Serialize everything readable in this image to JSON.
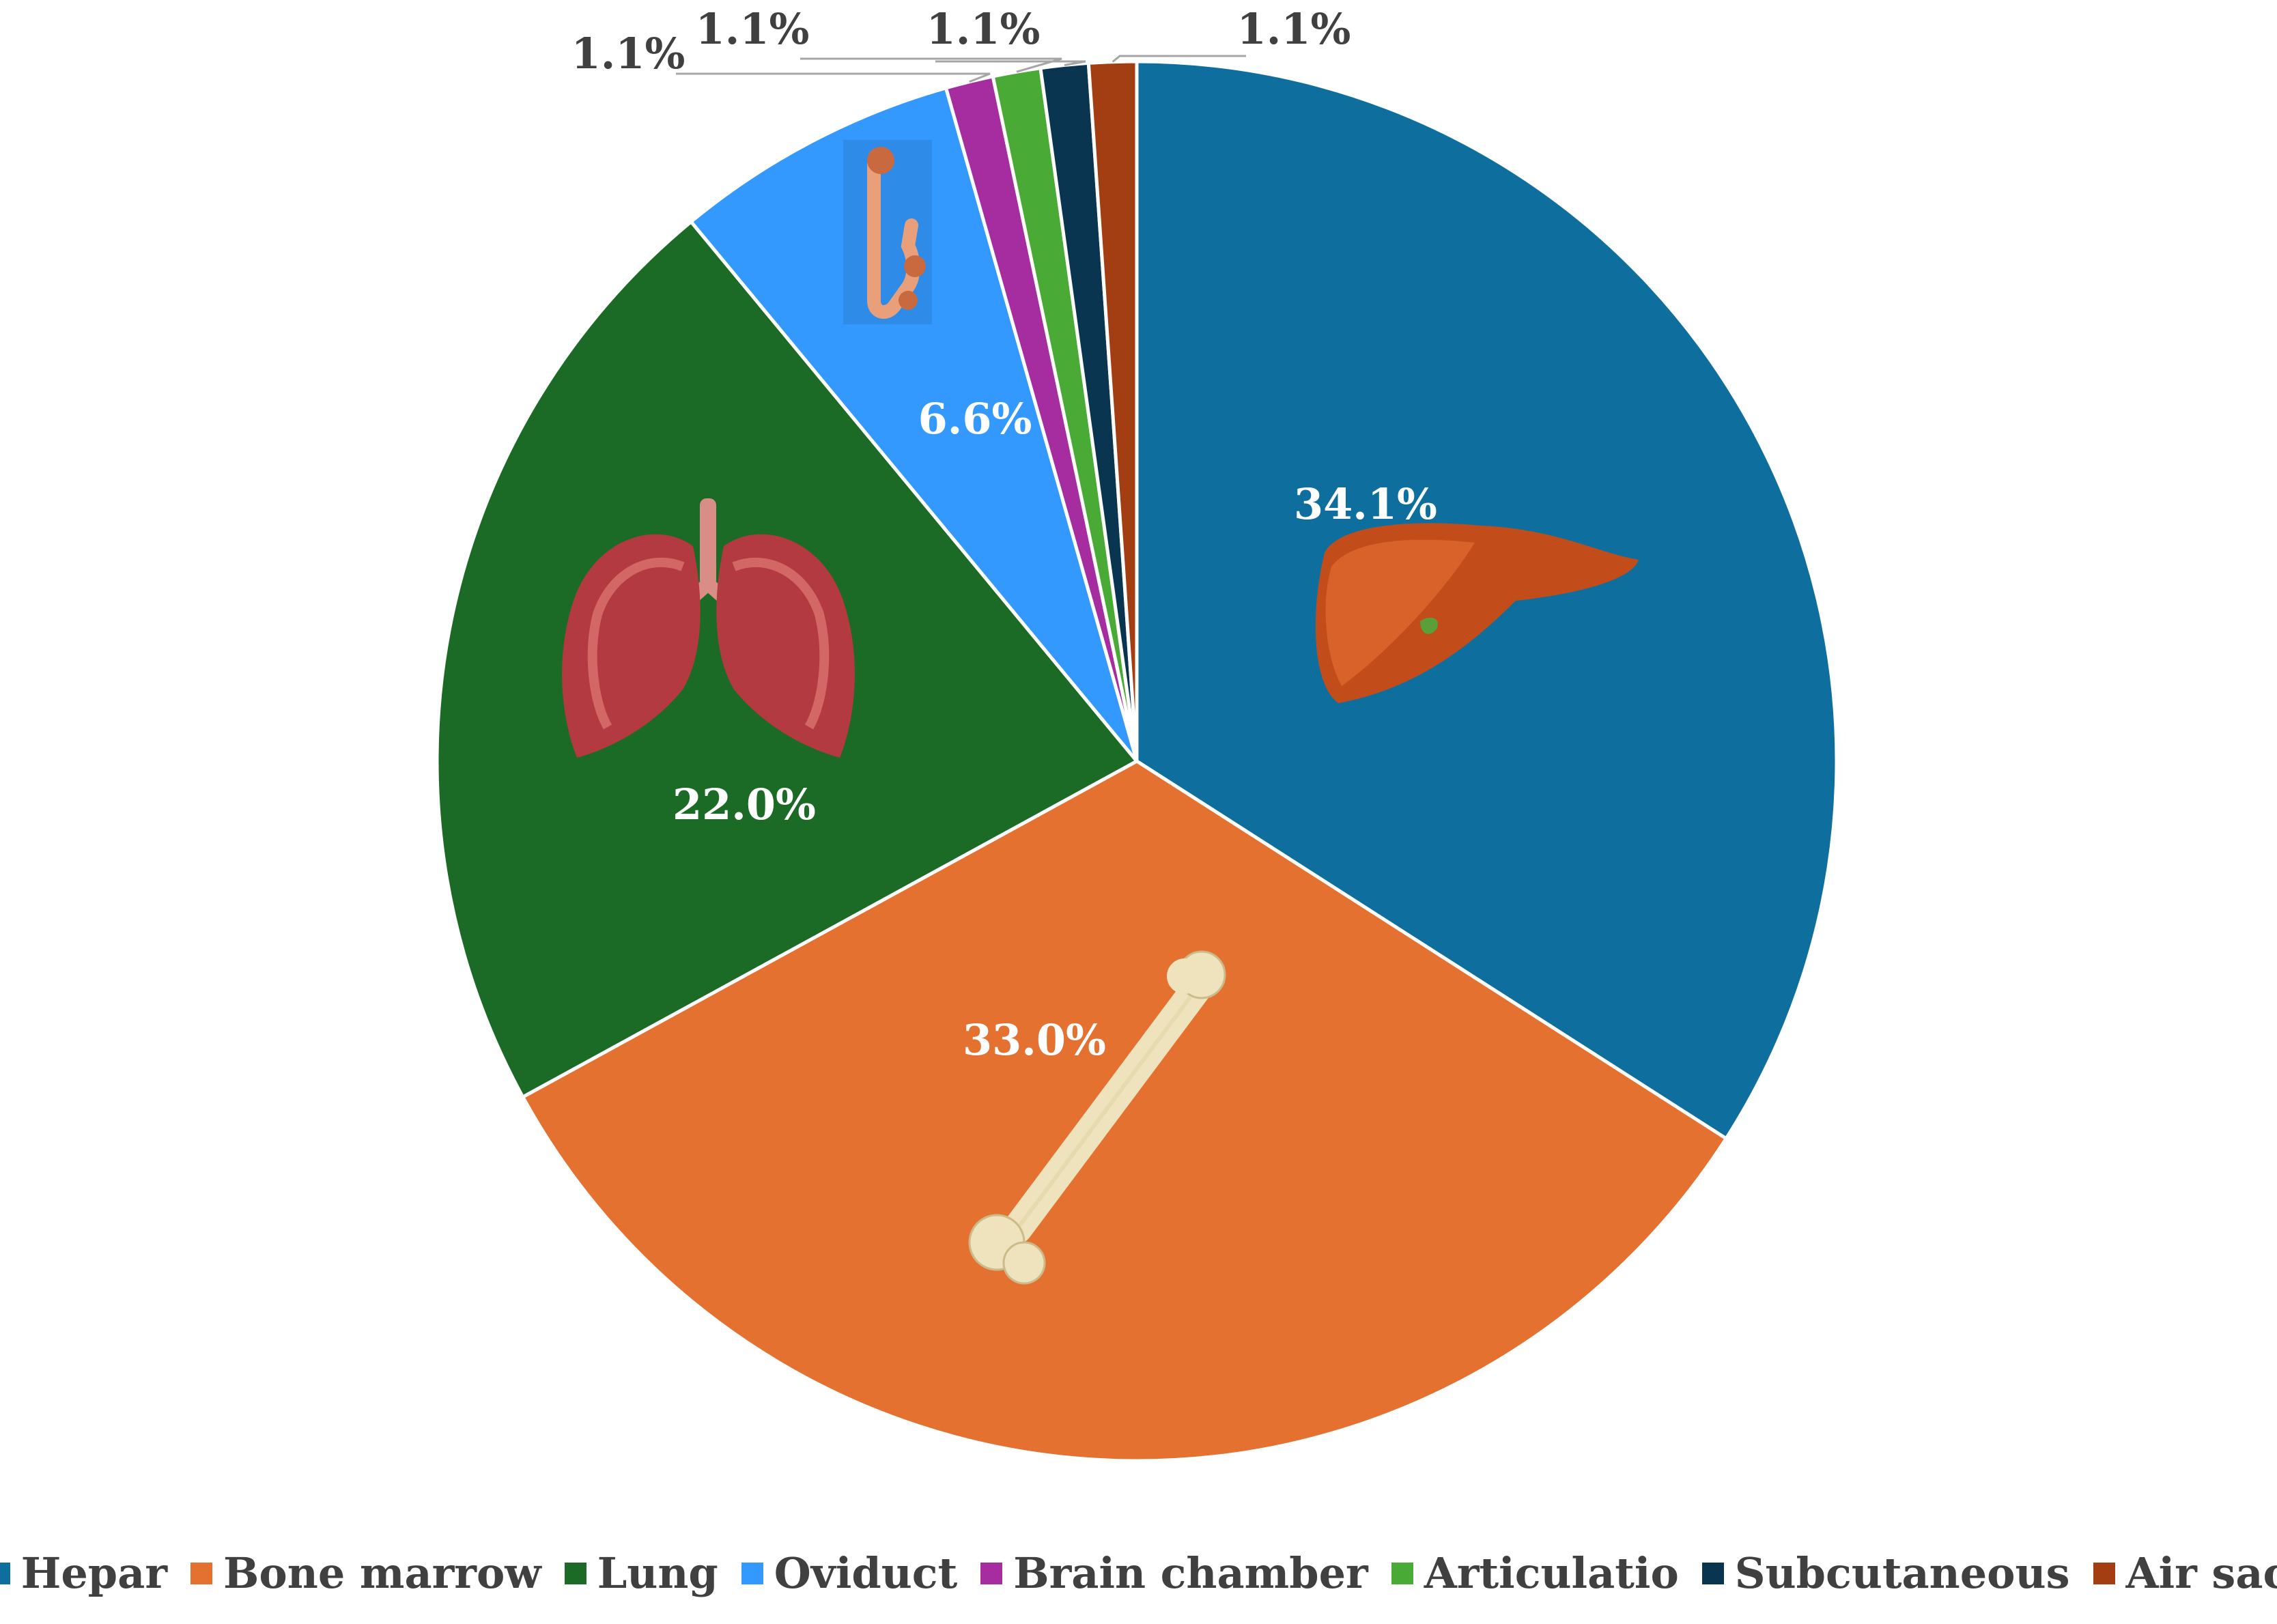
{
  "chart_data": {
    "type": "pie",
    "categories": [
      "Hepar",
      "Bone marrow",
      "Lung",
      "Oviduct",
      "Brain chamber",
      "Articulatio",
      "Subcutaneous",
      "Air sac"
    ],
    "values": [
      34.1,
      33.0,
      22.0,
      6.6,
      1.1,
      1.1,
      1.1,
      1.1
    ],
    "labels": [
      "34.1%",
      "33.0%",
      "22.0%",
      "6.6%",
      "1.1%",
      "1.1%",
      "1.1%",
      "1.1%"
    ],
    "colors": [
      "#0e6f9e",
      "#e57131",
      "#1b6a25",
      "#3399ff",
      "#a62d9f",
      "#4aaa36",
      "#0a3550",
      "#a33e12"
    ],
    "legend_position": "bottom",
    "title": "",
    "icons": [
      "liver-icon",
      "bone-icon",
      "lungs-icon",
      "oviduct-icon"
    ]
  }
}
